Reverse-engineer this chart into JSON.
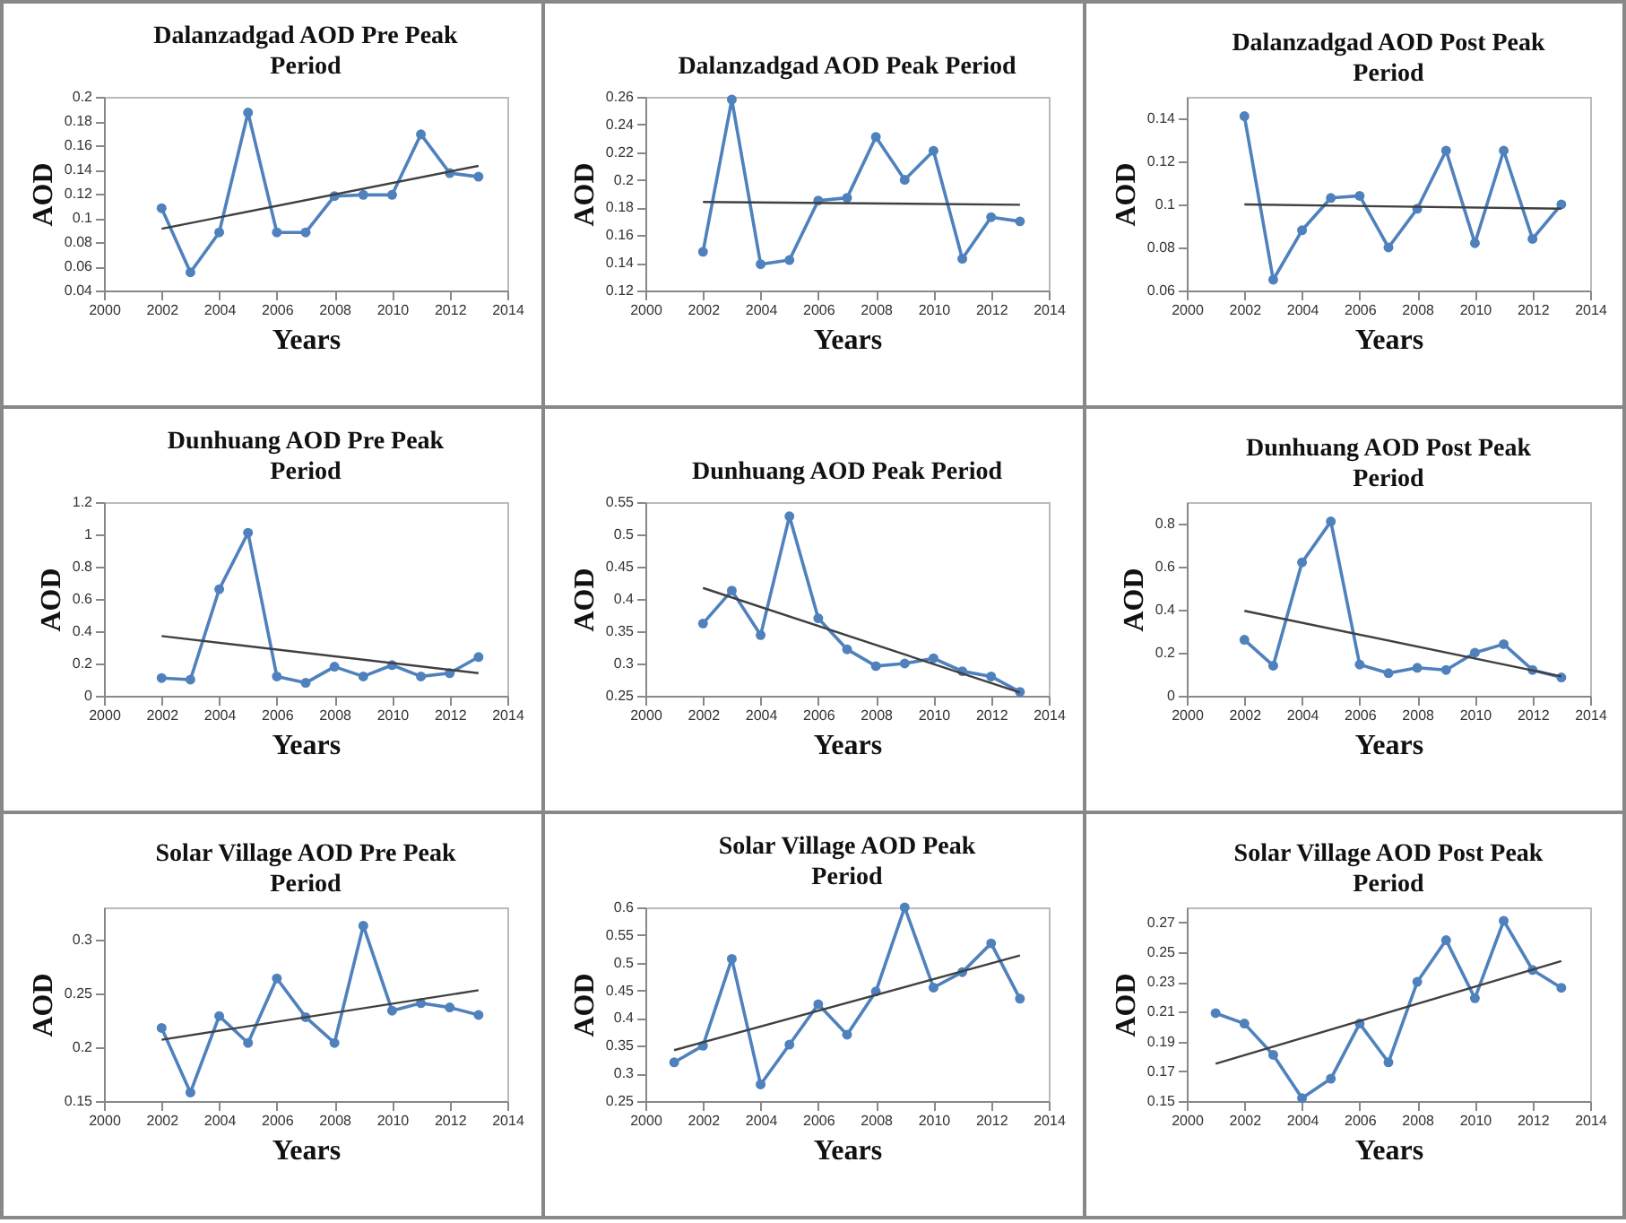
{
  "chart_data": [
    {
      "type": "line",
      "title": "Dalanzadgad AOD Pre Peak Period",
      "xlabel": "Years",
      "ylabel": "AOD",
      "xlim": [
        2000,
        2014
      ],
      "xticks": [
        2000,
        2002,
        2004,
        2006,
        2008,
        2010,
        2012,
        2014
      ],
      "ylim": [
        0.04,
        0.2
      ],
      "yticks": [
        0.04,
        0.06,
        0.08,
        0.1,
        0.12,
        0.14,
        0.16,
        0.18,
        0.2
      ],
      "grid": false,
      "marker": "circle",
      "series": [
        {
          "color": "#4f81bd",
          "x": [
            2002,
            2003,
            2004,
            2005,
            2006,
            2007,
            2008,
            2009,
            2010,
            2011,
            2012,
            2013
          ],
          "values": [
            0.108,
            0.055,
            0.088,
            0.187,
            0.088,
            0.088,
            0.118,
            0.119,
            0.119,
            0.169,
            0.137,
            0.134
          ]
        },
        {
          "color": "#404040",
          "marker": "none",
          "x": [
            2002,
            2013
          ],
          "values": [
            0.091,
            0.143
          ]
        }
      ]
    },
    {
      "type": "line",
      "title": "Dalanzadgad AOD Peak Period",
      "xlabel": "Years",
      "ylabel": "AOD",
      "xlim": [
        2000,
        2014
      ],
      "xticks": [
        2000,
        2002,
        2004,
        2006,
        2008,
        2010,
        2012,
        2014
      ],
      "ylim": [
        0.12,
        0.26
      ],
      "yticks": [
        0.12,
        0.14,
        0.16,
        0.18,
        0.2,
        0.22,
        0.24,
        0.26
      ],
      "grid": false,
      "marker": "circle",
      "series": [
        {
          "color": "#4f81bd",
          "x": [
            2002,
            2003,
            2004,
            2005,
            2006,
            2007,
            2008,
            2009,
            2010,
            2011,
            2012,
            2013
          ],
          "values": [
            0.148,
            0.258,
            0.139,
            0.142,
            0.185,
            0.187,
            0.231,
            0.2,
            0.221,
            0.143,
            0.173,
            0.17
          ]
        },
        {
          "color": "#404040",
          "marker": "none",
          "x": [
            2002,
            2013
          ],
          "values": [
            0.184,
            0.182
          ]
        }
      ]
    },
    {
      "type": "line",
      "title": "Dalanzadgad AOD Post Peak Period",
      "xlabel": "Years",
      "ylabel": "AOD",
      "xlim": [
        2000,
        2014
      ],
      "xticks": [
        2000,
        2002,
        2004,
        2006,
        2008,
        2010,
        2012,
        2014
      ],
      "ylim": [
        0.06,
        0.15
      ],
      "yticks": [
        0.06,
        0.08,
        0.1,
        0.12,
        0.14
      ],
      "grid": false,
      "marker": "circle",
      "series": [
        {
          "color": "#4f81bd",
          "x": [
            2002,
            2003,
            2004,
            2005,
            2006,
            2007,
            2008,
            2009,
            2010,
            2011,
            2012,
            2013
          ],
          "values": [
            0.141,
            0.065,
            0.088,
            0.103,
            0.104,
            0.08,
            0.098,
            0.125,
            0.082,
            0.125,
            0.084,
            0.1
          ]
        },
        {
          "color": "#404040",
          "marker": "none",
          "x": [
            2002,
            2013
          ],
          "values": [
            0.1,
            0.098
          ]
        }
      ]
    },
    {
      "type": "line",
      "title": "Dunhuang AOD Pre Peak Period",
      "xlabel": "Years",
      "ylabel": "AOD",
      "xlim": [
        2000,
        2014
      ],
      "xticks": [
        2000,
        2002,
        2004,
        2006,
        2008,
        2010,
        2012,
        2014
      ],
      "ylim": [
        0,
        1.2
      ],
      "yticks": [
        0,
        0.2,
        0.4,
        0.6,
        0.8,
        1,
        1.2
      ],
      "grid": false,
      "marker": "circle",
      "series": [
        {
          "color": "#4f81bd",
          "x": [
            2002,
            2003,
            2004,
            2005,
            2006,
            2007,
            2008,
            2009,
            2010,
            2011,
            2012,
            2013
          ],
          "values": [
            0.11,
            0.1,
            0.66,
            1.01,
            0.12,
            0.08,
            0.18,
            0.12,
            0.19,
            0.12,
            0.14,
            0.24
          ]
        },
        {
          "color": "#404040",
          "marker": "none",
          "x": [
            2002,
            2013
          ],
          "values": [
            0.37,
            0.14
          ]
        }
      ]
    },
    {
      "type": "line",
      "title": "Dunhuang AOD Peak Period",
      "xlabel": "Years",
      "ylabel": "AOD",
      "xlim": [
        2000,
        2014
      ],
      "xticks": [
        2000,
        2002,
        2004,
        2006,
        2008,
        2010,
        2012,
        2014
      ],
      "ylim": [
        0.25,
        0.55
      ],
      "yticks": [
        0.25,
        0.3,
        0.35,
        0.4,
        0.45,
        0.5,
        0.55
      ],
      "grid": false,
      "marker": "circle",
      "series": [
        {
          "color": "#4f81bd",
          "x": [
            2002,
            2003,
            2004,
            2005,
            2006,
            2007,
            2008,
            2009,
            2010,
            2011,
            2012,
            2013
          ],
          "values": [
            0.362,
            0.413,
            0.344,
            0.528,
            0.37,
            0.322,
            0.296,
            0.3,
            0.308,
            0.288,
            0.28,
            0.256
          ]
        },
        {
          "color": "#404040",
          "marker": "none",
          "x": [
            2002,
            2013
          ],
          "values": [
            0.417,
            0.255
          ]
        }
      ]
    },
    {
      "type": "line",
      "title": "Dunhuang AOD Post Peak Period",
      "xlabel": "Years",
      "ylabel": "AOD",
      "xlim": [
        2000,
        2014
      ],
      "xticks": [
        2000,
        2002,
        2004,
        2006,
        2008,
        2010,
        2012,
        2014
      ],
      "ylim": [
        0,
        0.9
      ],
      "yticks": [
        0,
        0.2,
        0.4,
        0.6,
        0.8
      ],
      "grid": false,
      "marker": "circle",
      "series": [
        {
          "color": "#4f81bd",
          "x": [
            2002,
            2003,
            2004,
            2005,
            2006,
            2007,
            2008,
            2009,
            2010,
            2011,
            2012,
            2013
          ],
          "values": [
            0.26,
            0.14,
            0.62,
            0.81,
            0.145,
            0.105,
            0.13,
            0.12,
            0.2,
            0.24,
            0.12,
            0.085
          ]
        },
        {
          "color": "#404040",
          "marker": "none",
          "x": [
            2002,
            2013
          ],
          "values": [
            0.395,
            0.09
          ]
        }
      ]
    },
    {
      "type": "line",
      "title": "Solar Village AOD Pre Peak Period",
      "xlabel": "Years",
      "ylabel": "AOD",
      "xlim": [
        2000,
        2014
      ],
      "xticks": [
        2000,
        2002,
        2004,
        2006,
        2008,
        2010,
        2012,
        2014
      ],
      "ylim": [
        0.15,
        0.33
      ],
      "yticks": [
        0.15,
        0.2,
        0.25,
        0.3
      ],
      "grid": false,
      "marker": "circle",
      "series": [
        {
          "color": "#4f81bd",
          "x": [
            2002,
            2003,
            2004,
            2005,
            2006,
            2007,
            2008,
            2009,
            2010,
            2011,
            2012,
            2013
          ],
          "values": [
            0.218,
            0.158,
            0.229,
            0.204,
            0.264,
            0.228,
            0.204,
            0.313,
            0.234,
            0.241,
            0.237,
            0.23
          ]
        },
        {
          "color": "#404040",
          "marker": "none",
          "x": [
            2002,
            2013
          ],
          "values": [
            0.207,
            0.253
          ]
        }
      ]
    },
    {
      "type": "line",
      "title": "Solar Village AOD  Peak Period",
      "xlabel": "Years",
      "ylabel": "AOD",
      "xlim": [
        2000,
        2014
      ],
      "xticks": [
        2000,
        2002,
        2004,
        2006,
        2008,
        2010,
        2012,
        2014
      ],
      "ylim": [
        0.25,
        0.6
      ],
      "yticks": [
        0.25,
        0.3,
        0.35,
        0.4,
        0.45,
        0.5,
        0.55,
        0.6
      ],
      "grid": false,
      "marker": "circle",
      "series": [
        {
          "color": "#4f81bd",
          "x": [
            2001,
            2002,
            2003,
            2004,
            2005,
            2006,
            2007,
            2008,
            2009,
            2010,
            2011,
            2012,
            2013
          ],
          "values": [
            0.32,
            0.35,
            0.507,
            0.28,
            0.352,
            0.425,
            0.37,
            0.448,
            0.6,
            0.455,
            0.483,
            0.535,
            0.435
          ]
        },
        {
          "color": "#404040",
          "marker": "none",
          "x": [
            2001,
            2013
          ],
          "values": [
            0.342,
            0.513
          ]
        }
      ]
    },
    {
      "type": "line",
      "title": "Solar Village AOD Post Peak Period",
      "xlabel": "Years",
      "ylabel": "AOD",
      "xlim": [
        2000,
        2014
      ],
      "xticks": [
        2000,
        2002,
        2004,
        2006,
        2008,
        2010,
        2012,
        2014
      ],
      "ylim": [
        0.15,
        0.28
      ],
      "yticks": [
        0.15,
        0.17,
        0.19,
        0.21,
        0.23,
        0.25,
        0.27
      ],
      "grid": false,
      "marker": "circle",
      "series": [
        {
          "color": "#4f81bd",
          "x": [
            2001,
            2002,
            2003,
            2004,
            2005,
            2006,
            2007,
            2008,
            2009,
            2010,
            2011,
            2012,
            2013
          ],
          "values": [
            0.209,
            0.202,
            0.181,
            0.152,
            0.165,
            0.202,
            0.176,
            0.23,
            0.258,
            0.219,
            0.271,
            0.238,
            0.226
          ]
        },
        {
          "color": "#404040",
          "marker": "none",
          "x": [
            2001,
            2013
          ],
          "values": [
            0.175,
            0.244
          ]
        }
      ]
    }
  ]
}
